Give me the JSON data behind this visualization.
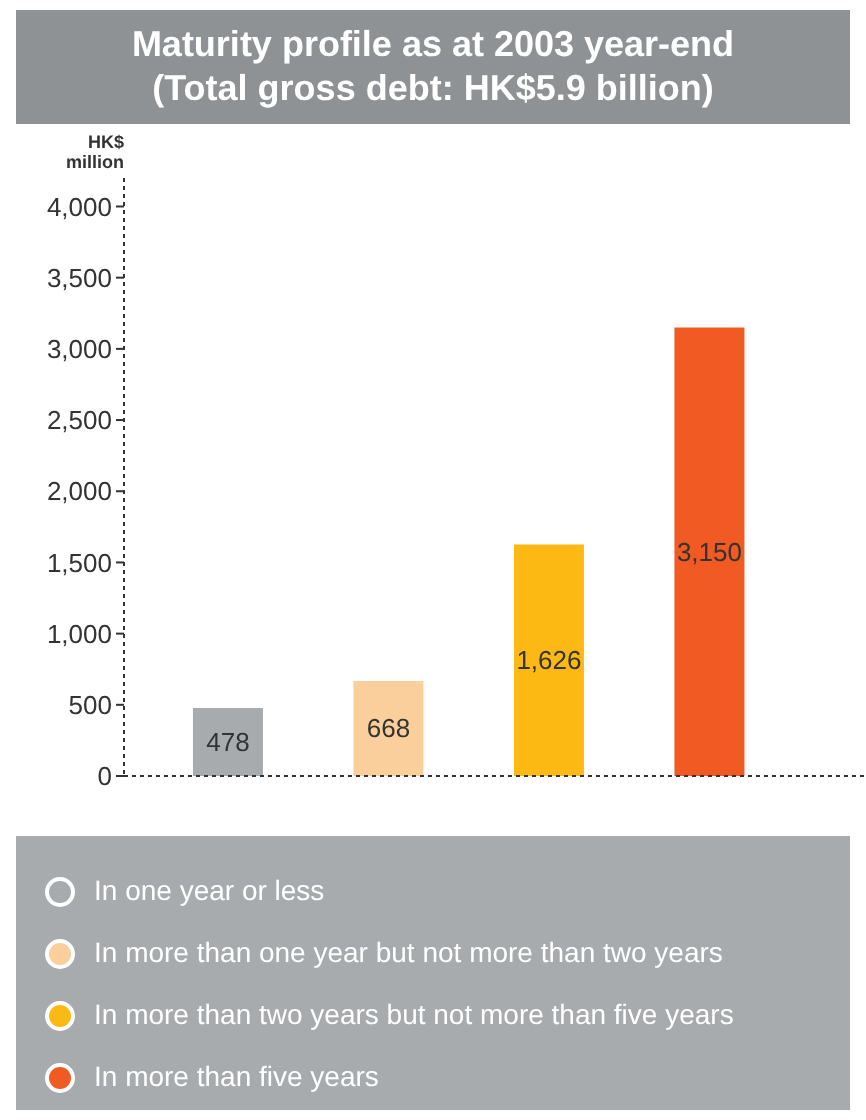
{
  "chart_data": {
    "type": "bar",
    "title": "Maturity profile as at 2003 year-end",
    "subtitle": "(Total gross debt: HK$5.9 billion)",
    "ylabel": "HK$ million",
    "categories": [
      null,
      null,
      null,
      null
    ],
    "series": [
      {
        "name": "In one year or less",
        "color": "#a7abae",
        "values": [
          478,
          null,
          null,
          null
        ],
        "value_labels": [
          "478",
          null,
          null,
          null
        ]
      },
      {
        "name": "In more than one year but not more than two years",
        "color": "#fbcf9b",
        "values": [
          null,
          668,
          null,
          null
        ],
        "value_labels": [
          null,
          "668",
          null,
          null
        ]
      },
      {
        "name": "In more than two years but not more than five years",
        "color": "#fdb913",
        "values": [
          null,
          null,
          1626,
          null
        ],
        "value_labels": [
          null,
          null,
          "1,626",
          null
        ]
      },
      {
        "name": "In more than five years",
        "color": "#f15a22",
        "values": [
          null,
          null,
          null,
          3150
        ],
        "value_labels": [
          null,
          null,
          null,
          "3,150"
        ]
      }
    ],
    "stacked": true,
    "ylim": [
      0,
      4200
    ],
    "yticks": [
      0,
      500,
      {
        "value": 1000,
        "label": "1,000"
      },
      {
        "value": 1500,
        "label": "1,500"
      },
      {
        "value": 2000,
        "label": "2,000"
      },
      {
        "value": 2500,
        "label": "2,500"
      },
      {
        "value": 3000,
        "label": "3,000"
      },
      {
        "value": 3500,
        "label": "3,500"
      },
      {
        "value": 4000,
        "label": "4,000"
      }
    ],
    "tick_labels": "y",
    "grid": false,
    "legend": "bottom"
  }
}
